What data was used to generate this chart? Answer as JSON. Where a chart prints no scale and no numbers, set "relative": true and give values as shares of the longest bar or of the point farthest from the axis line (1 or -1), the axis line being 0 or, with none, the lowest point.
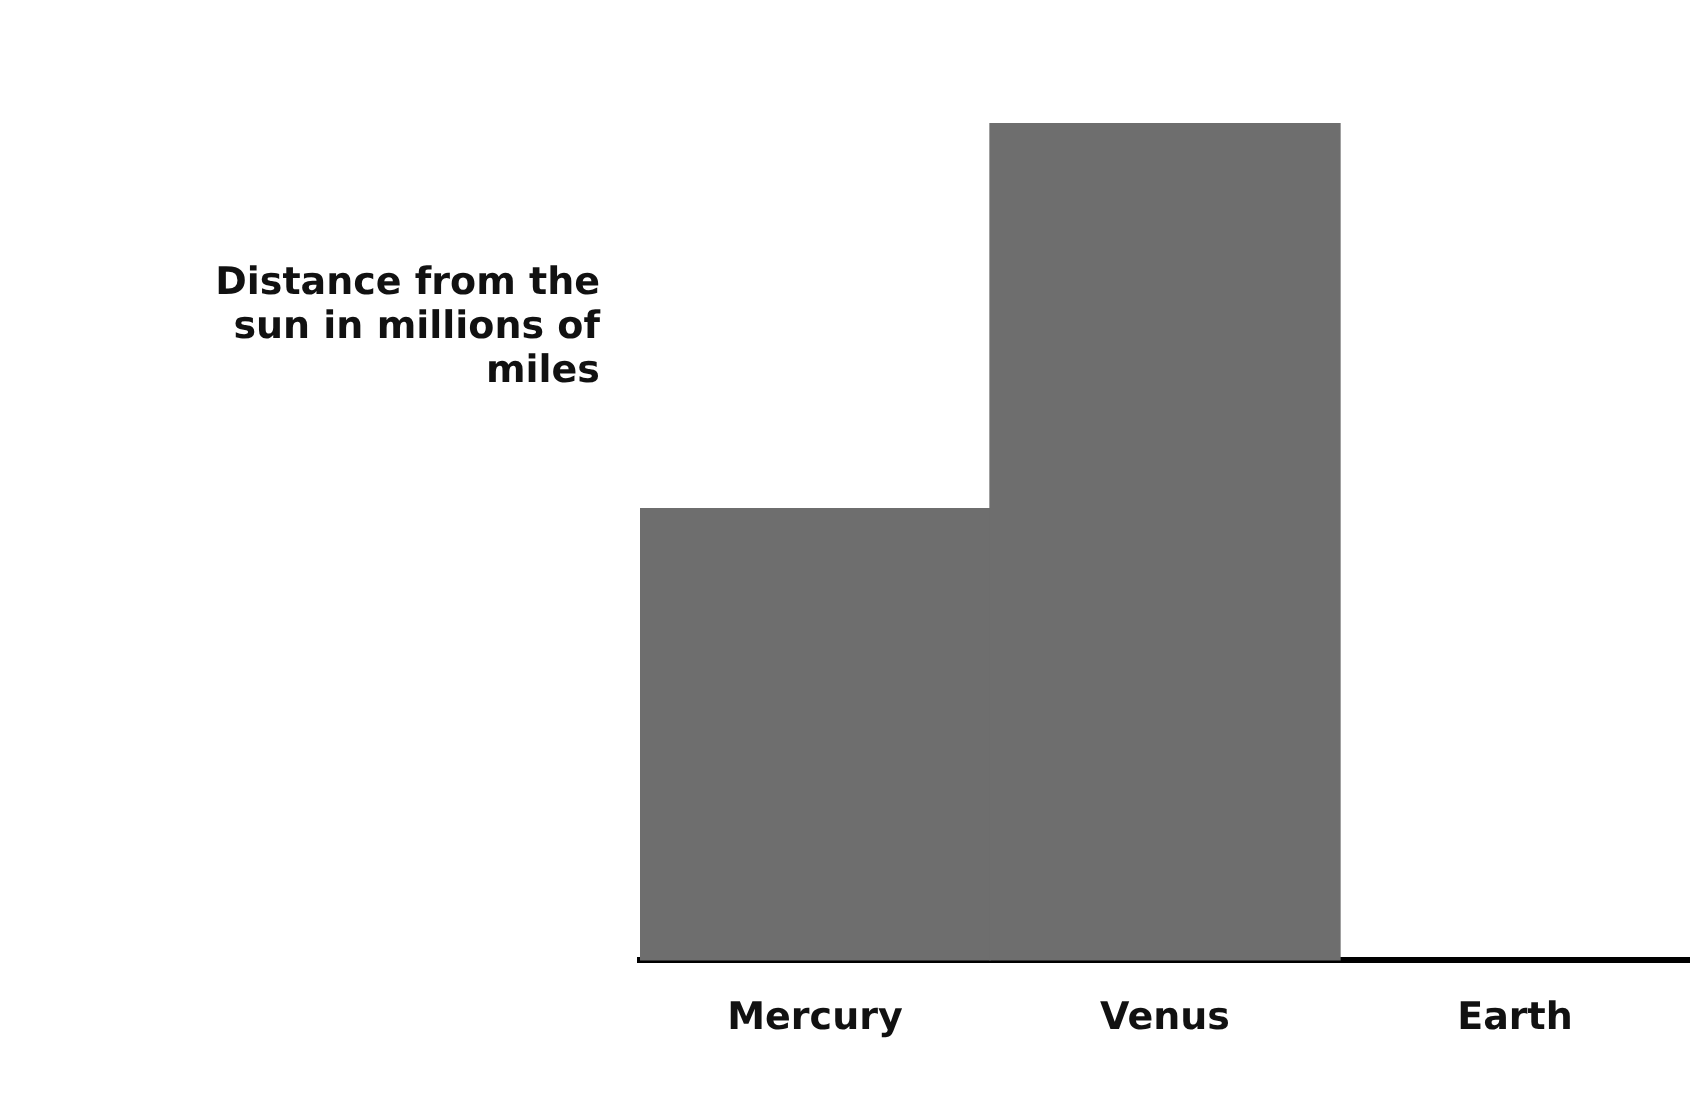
{
  "chart_data": {
    "type": "bar",
    "ylabel": "Distance from the sun in millions of miles",
    "categories": [
      "Mercury",
      "Venus",
      "Earth"
    ],
    "values": [
      0.54,
      1,
      null
    ],
    "color": "#6e6e6e",
    "relative": true,
    "grid": false,
    "legend": false
  }
}
